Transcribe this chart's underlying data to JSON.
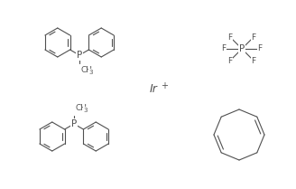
{
  "bg_color": "#ffffff",
  "line_color": "#505050",
  "text_color": "#505050",
  "figsize": [
    3.28,
    2.09
  ],
  "dpi": 100,
  "p_label": "P",
  "f_label": "F",
  "ir_label": "Ir",
  "ir_charge": "+"
}
